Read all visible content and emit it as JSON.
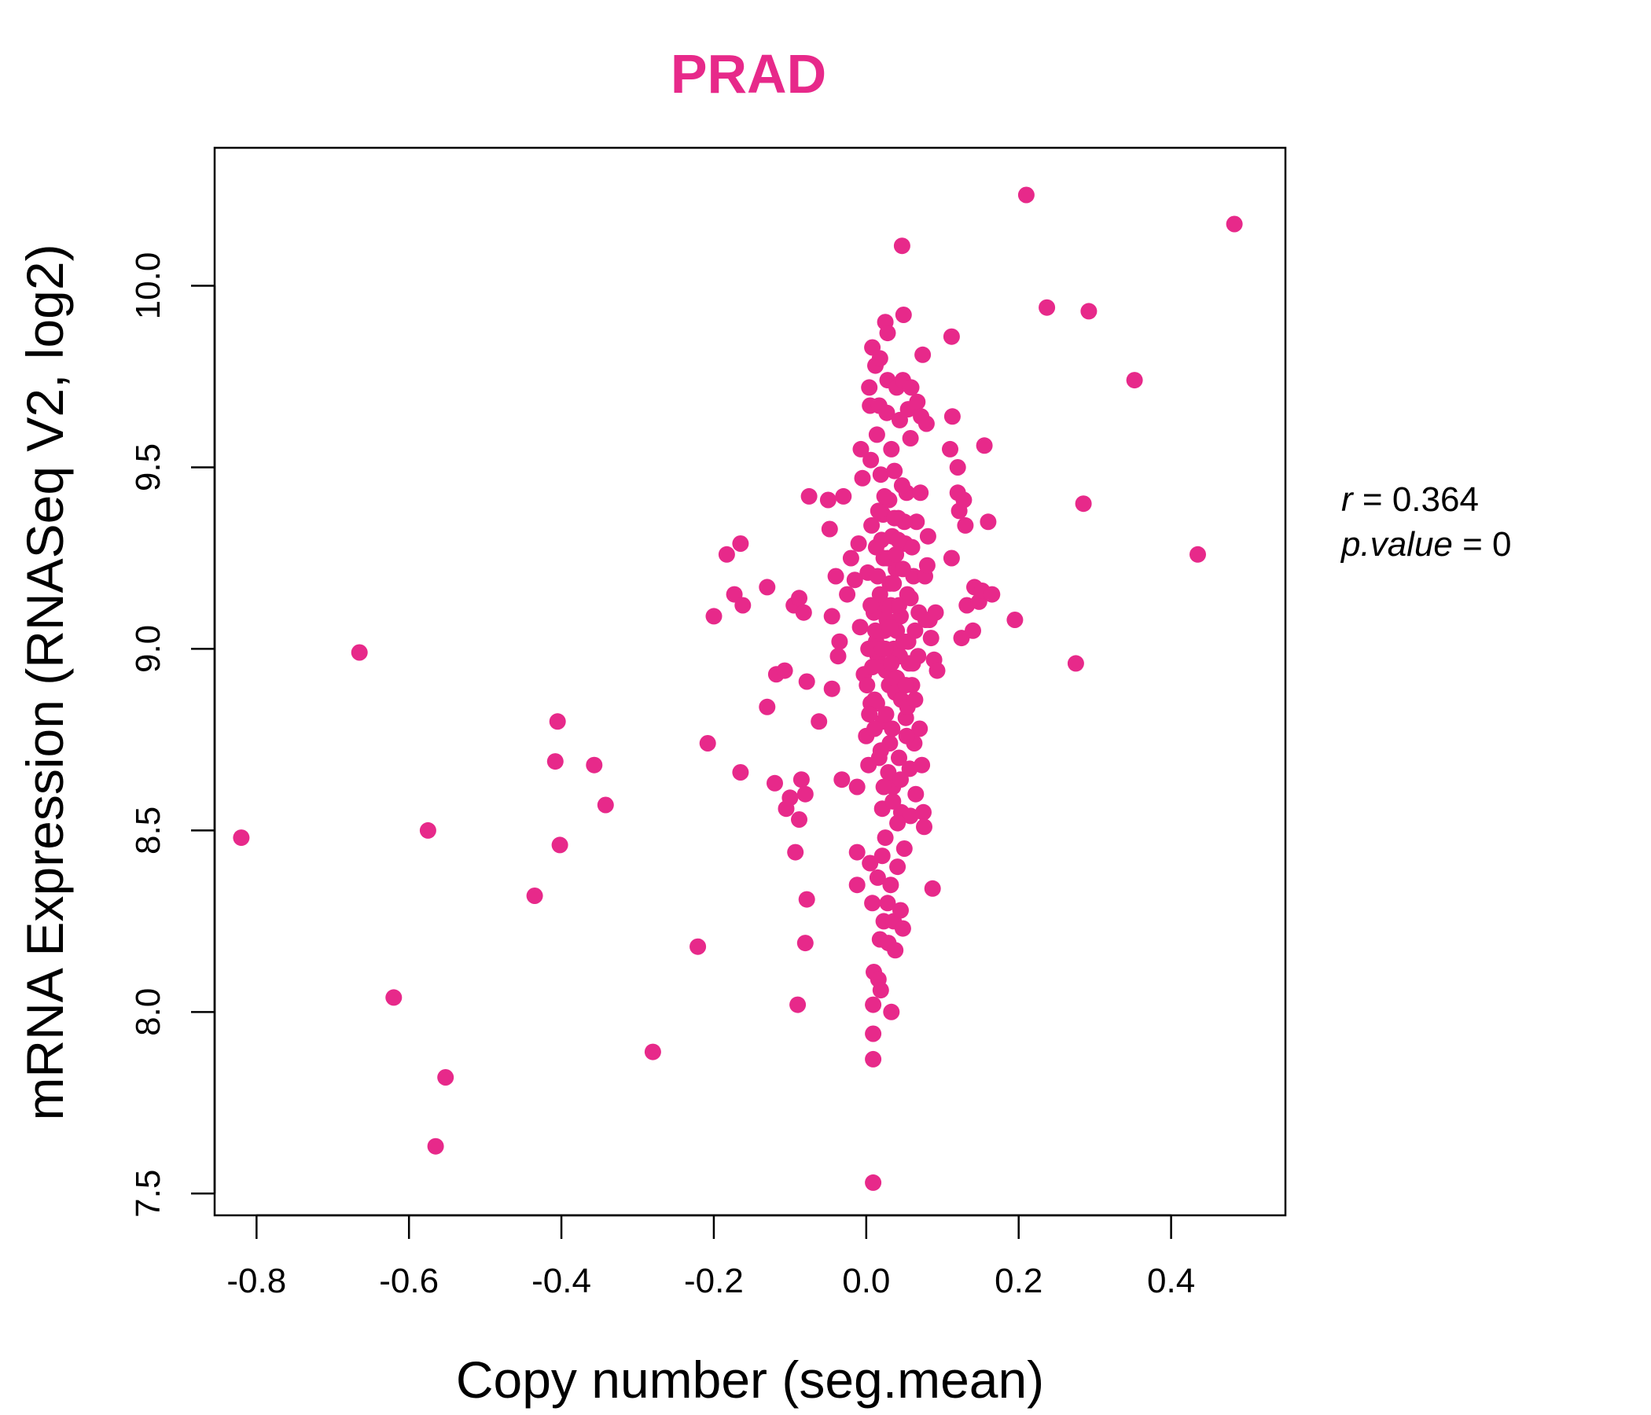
{
  "chart_data": {
    "type": "scatter",
    "title": "PRAD",
    "title_color": "#E7298A",
    "point_color": "#E7298A",
    "xlabel": "Copy number (seg.mean)",
    "ylabel": "mRNA Expression (RNASeq V2, log2)",
    "xlim": [
      -0.855,
      0.55
    ],
    "ylim": [
      7.44,
      10.38
    ],
    "xticks": [
      -0.8,
      -0.6,
      -0.4,
      -0.2,
      0.0,
      0.2,
      0.4
    ],
    "xtick_labels": [
      "-0.8",
      "-0.6",
      "-0.4",
      "-0.2",
      "0.0",
      "0.2",
      "0.4"
    ],
    "yticks": [
      7.5,
      8.0,
      8.5,
      9.0,
      9.5,
      10.0
    ],
    "ytick_labels": [
      "7.5",
      "8.0",
      "8.5",
      "9.0",
      "9.5",
      "10.0"
    ],
    "annotation": {
      "r_label": "r",
      "r_value": "0.364",
      "p_label": "p.value",
      "p_value": "0"
    },
    "points": [
      [
        -0.82,
        8.48
      ],
      [
        -0.665,
        8.99
      ],
      [
        -0.62,
        8.04
      ],
      [
        -0.575,
        8.5
      ],
      [
        -0.565,
        7.63
      ],
      [
        -0.552,
        7.82
      ],
      [
        -0.435,
        8.32
      ],
      [
        -0.405,
        8.8
      ],
      [
        -0.408,
        8.69
      ],
      [
        -0.402,
        8.46
      ],
      [
        -0.357,
        8.68
      ],
      [
        -0.342,
        8.57
      ],
      [
        -0.28,
        7.89
      ],
      [
        -0.221,
        8.18
      ],
      [
        -0.208,
        8.74
      ],
      [
        -0.2,
        9.09
      ],
      [
        -0.183,
        9.26
      ],
      [
        -0.173,
        9.15
      ],
      [
        -0.165,
        9.29
      ],
      [
        -0.162,
        9.12
      ],
      [
        -0.165,
        8.66
      ],
      [
        -0.13,
        9.17
      ],
      [
        -0.13,
        8.84
      ],
      [
        -0.12,
        8.63
      ],
      [
        -0.118,
        8.93
      ],
      [
        -0.107,
        8.94
      ],
      [
        -0.105,
        8.56
      ],
      [
        -0.1,
        8.59
      ],
      [
        -0.095,
        9.12
      ],
      [
        -0.093,
        8.44
      ],
      [
        -0.09,
        8.02
      ],
      [
        -0.088,
        9.14
      ],
      [
        -0.088,
        8.53
      ],
      [
        -0.085,
        8.64
      ],
      [
        -0.082,
        9.1
      ],
      [
        -0.08,
        8.6
      ],
      [
        -0.08,
        8.19
      ],
      [
        -0.078,
        8.31
      ],
      [
        -0.078,
        8.91
      ],
      [
        -0.075,
        9.42
      ],
      [
        -0.062,
        8.8
      ],
      [
        -0.05,
        9.41
      ],
      [
        -0.048,
        9.33
      ],
      [
        -0.045,
        9.09
      ],
      [
        -0.045,
        8.89
      ],
      [
        -0.04,
        9.2
      ],
      [
        -0.037,
        8.98
      ],
      [
        -0.035,
        9.02
      ],
      [
        -0.032,
        8.64
      ],
      [
        -0.03,
        9.42
      ],
      [
        -0.025,
        9.15
      ],
      [
        -0.02,
        9.25
      ],
      [
        -0.015,
        9.19
      ],
      [
        -0.012,
        8.62
      ],
      [
        -0.012,
        8.35
      ],
      [
        -0.012,
        8.44
      ],
      [
        -0.01,
        9.29
      ],
      [
        -0.008,
        9.06
      ],
      [
        -0.007,
        9.55
      ],
      [
        -0.005,
        9.47
      ],
      [
        -0.003,
        8.93
      ],
      [
        0.0,
        8.76
      ],
      [
        0.002,
        9.21
      ],
      [
        0.003,
        8.68
      ],
      [
        0.004,
        9.72
      ],
      [
        0.005,
        9.67
      ],
      [
        0.005,
        8.41
      ],
      [
        0.006,
        8.85
      ],
      [
        0.006,
        9.52
      ],
      [
        0.007,
        9.34
      ],
      [
        0.008,
        9.83
      ],
      [
        0.008,
        8.3
      ],
      [
        0.009,
        8.02
      ],
      [
        0.009,
        7.94
      ],
      [
        0.009,
        7.87
      ],
      [
        0.009,
        7.53
      ],
      [
        0.01,
        8.11
      ],
      [
        0.011,
        8.86
      ],
      [
        0.012,
        9.78
      ],
      [
        0.013,
        9.02
      ],
      [
        0.014,
        9.59
      ],
      [
        0.015,
        8.98
      ],
      [
        0.015,
        8.37
      ],
      [
        0.016,
        8.09
      ],
      [
        0.017,
        9.67
      ],
      [
        0.018,
        9.8
      ],
      [
        0.018,
        8.2
      ],
      [
        0.019,
        9.48
      ],
      [
        0.019,
        8.06
      ],
      [
        0.02,
        9.11
      ],
      [
        0.021,
        8.43
      ],
      [
        0.021,
        8.56
      ],
      [
        0.022,
        8.8
      ],
      [
        0.022,
        9.37
      ],
      [
        0.023,
        9.25
      ],
      [
        0.023,
        8.25
      ],
      [
        0.024,
        9.05
      ],
      [
        0.025,
        8.48
      ],
      [
        0.025,
        9.9
      ],
      [
        0.026,
        8.94
      ],
      [
        0.027,
        9.65
      ],
      [
        0.028,
        9.74
      ],
      [
        0.028,
        9.87
      ],
      [
        0.028,
        8.3
      ],
      [
        0.029,
        8.19
      ],
      [
        0.03,
        9.41
      ],
      [
        0.031,
        9.18
      ],
      [
        0.031,
        8.74
      ],
      [
        0.032,
        8.35
      ],
      [
        0.033,
        9.55
      ],
      [
        0.033,
        8.0
      ],
      [
        0.034,
        9.31
      ],
      [
        0.035,
        8.62
      ],
      [
        0.036,
        9.0
      ],
      [
        0.036,
        8.25
      ],
      [
        0.037,
        9.49
      ],
      [
        0.038,
        8.17
      ],
      [
        0.039,
        9.22
      ],
      [
        0.04,
        8.92
      ],
      [
        0.04,
        9.72
      ],
      [
        0.041,
        8.4
      ],
      [
        0.042,
        9.36
      ],
      [
        0.043,
        8.7
      ],
      [
        0.044,
        9.63
      ],
      [
        0.045,
        9.09
      ],
      [
        0.045,
        8.28
      ],
      [
        0.046,
        8.55
      ],
      [
        0.047,
        10.11
      ],
      [
        0.048,
        9.74
      ],
      [
        0.048,
        8.23
      ],
      [
        0.049,
        9.92
      ],
      [
        0.05,
        8.45
      ],
      [
        0.051,
        9.29
      ],
      [
        0.052,
        8.81
      ],
      [
        0.053,
        9.43
      ],
      [
        0.054,
        9.15
      ],
      [
        0.055,
        9.66
      ],
      [
        0.056,
        8.96
      ],
      [
        0.057,
        8.67
      ],
      [
        0.058,
        9.58
      ],
      [
        0.058,
        8.54
      ],
      [
        0.059,
        9.72
      ],
      [
        0.06,
        8.9
      ],
      [
        0.062,
        9.2
      ],
      [
        0.063,
        8.74
      ],
      [
        0.064,
        9.05
      ],
      [
        0.065,
        8.6
      ],
      [
        0.066,
        9.35
      ],
      [
        0.067,
        9.68
      ],
      [
        0.068,
        8.98
      ],
      [
        0.069,
        9.1
      ],
      [
        0.07,
        8.78
      ],
      [
        0.071,
        9.43
      ],
      [
        0.072,
        9.64
      ],
      [
        0.073,
        8.68
      ],
      [
        0.074,
        9.81
      ],
      [
        0.075,
        8.55
      ],
      [
        0.076,
        8.51
      ],
      [
        0.077,
        9.2
      ],
      [
        0.078,
        9.08
      ],
      [
        0.079,
        9.62
      ],
      [
        0.08,
        9.23
      ],
      [
        0.081,
        9.31
      ],
      [
        0.083,
        9.08
      ],
      [
        0.085,
        9.03
      ],
      [
        0.087,
        8.34
      ],
      [
        0.089,
        8.97
      ],
      [
        0.091,
        9.1
      ],
      [
        0.093,
        8.94
      ],
      [
        0.112,
        9.86
      ],
      [
        0.113,
        9.64
      ],
      [
        0.11,
        9.55
      ],
      [
        0.112,
        9.25
      ],
      [
        0.12,
        9.5
      ],
      [
        0.12,
        9.43
      ],
      [
        0.122,
        9.38
      ],
      [
        0.125,
        9.03
      ],
      [
        0.128,
        9.41
      ],
      [
        0.13,
        9.34
      ],
      [
        0.132,
        9.12
      ],
      [
        0.14,
        9.05
      ],
      [
        0.142,
        9.17
      ],
      [
        0.148,
        9.13
      ],
      [
        0.152,
        9.16
      ],
      [
        0.155,
        9.56
      ],
      [
        0.16,
        9.35
      ],
      [
        0.165,
        9.15
      ],
      [
        0.195,
        9.08
      ],
      [
        0.21,
        10.25
      ],
      [
        0.237,
        9.94
      ],
      [
        0.275,
        8.96
      ],
      [
        0.285,
        9.4
      ],
      [
        0.292,
        9.93
      ],
      [
        0.352,
        9.74
      ],
      [
        0.435,
        9.26
      ],
      [
        0.483,
        10.17
      ],
      [
        0.01,
        9.1
      ],
      [
        0.015,
        9.2
      ],
      [
        0.02,
        9.3
      ],
      [
        0.025,
        9.0
      ],
      [
        0.03,
        8.9
      ],
      [
        0.012,
        9.05
      ],
      [
        0.018,
        9.15
      ],
      [
        0.022,
        8.95
      ],
      [
        0.028,
        9.25
      ],
      [
        0.032,
        9.12
      ],
      [
        0.036,
        9.18
      ],
      [
        0.04,
        9.05
      ],
      [
        0.044,
        8.98
      ],
      [
        0.048,
        9.22
      ],
      [
        0.05,
        9.35
      ],
      [
        0.055,
        9.02
      ],
      [
        0.06,
        9.28
      ],
      [
        0.008,
        8.95
      ],
      [
        0.014,
        8.85
      ],
      [
        0.026,
        8.82
      ],
      [
        0.034,
        8.78
      ],
      [
        0.038,
        8.88
      ],
      [
        0.046,
        8.86
      ],
      [
        0.052,
        8.9
      ],
      [
        0.016,
        9.38
      ],
      [
        0.024,
        9.42
      ],
      [
        0.042,
        9.3
      ],
      [
        0.047,
        9.45
      ],
      [
        0.019,
        8.72
      ],
      [
        0.029,
        8.66
      ],
      [
        0.035,
        8.58
      ],
      [
        0.041,
        8.52
      ],
      [
        0.003,
        9.0
      ],
      [
        0.006,
        9.12
      ],
      [
        0.011,
        8.78
      ],
      [
        0.027,
        9.08
      ],
      [
        0.033,
        8.96
      ],
      [
        0.037,
        9.36
      ],
      [
        0.043,
        9.12
      ],
      [
        0.049,
        9.02
      ],
      [
        0.054,
        8.84
      ],
      [
        0.058,
        9.14
      ],
      [
        0.061,
        8.96
      ],
      [
        0.064,
        8.86
      ],
      [
        0.013,
        9.28
      ],
      [
        0.021,
        9.0
      ],
      [
        0.031,
        9.06
      ],
      [
        0.039,
        9.26
      ],
      [
        0.001,
        8.9
      ],
      [
        0.004,
        8.82
      ],
      [
        0.017,
        8.7
      ],
      [
        0.023,
        8.62
      ],
      [
        0.045,
        8.64
      ],
      [
        0.053,
        8.76
      ]
    ]
  }
}
